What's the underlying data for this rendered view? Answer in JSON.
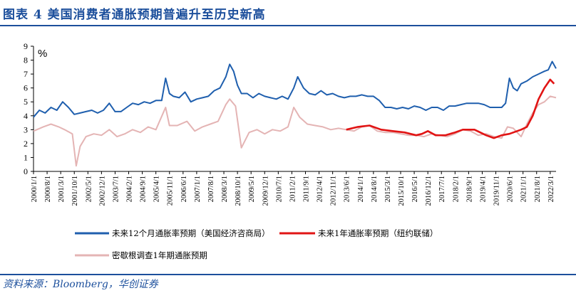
{
  "figure": {
    "title": "图表 4   美国消费者通胀预期普遍升至历史新高",
    "source": "资料来源：Bloomberg，华创证券"
  },
  "chart_data": {
    "type": "line",
    "unit_label": "%",
    "ylim": [
      0,
      9
    ],
    "yticks": [
      0,
      1,
      2,
      3,
      4,
      5,
      6,
      7,
      8,
      9
    ],
    "xlim": [
      "2000-01",
      "2022-06"
    ],
    "xticks": [
      "2000/1/1",
      "2000/8/1",
      "2001/3/1",
      "2001/10/1",
      "2002/5/1",
      "2002/12/1",
      "2003/7/1",
      "2004/2/1",
      "2004/9/1",
      "2005/4/1",
      "2005/11/1",
      "2006/6/1",
      "2007/1/1",
      "2007/8/1",
      "2008/3/1",
      "2008/10/1",
      "2009/5/1",
      "2009/12/1",
      "2010/7/1",
      "2011/2/1",
      "2011/9/1",
      "2012/4/1",
      "2012/11/1",
      "2013/6/1",
      "2014/1/1",
      "2014/8/1",
      "2015/3/1",
      "2015/10/1",
      "2016/5/1",
      "2016/12/1",
      "2017/7/1",
      "2018/2/1",
      "2018/9/1",
      "2019/4/1",
      "2019/11/1",
      "2020/6/1",
      "2021/1/1",
      "2021/8/1",
      "2022/3/1"
    ],
    "grid": false,
    "legend": "bottom",
    "series": [
      {
        "name": "未来12个月通胀率预期（美国经济咨商局）",
        "color": "#1f5fae",
        "points": [
          [
            "2000-01",
            3.9
          ],
          [
            "2000-04",
            4.4
          ],
          [
            "2000-07",
            4.2
          ],
          [
            "2000-10",
            4.6
          ],
          [
            "2001-01",
            4.4
          ],
          [
            "2001-04",
            5.0
          ],
          [
            "2001-07",
            4.6
          ],
          [
            "2001-10",
            4.1
          ],
          [
            "2002-01",
            4.2
          ],
          [
            "2002-04",
            4.3
          ],
          [
            "2002-07",
            4.4
          ],
          [
            "2002-10",
            4.2
          ],
          [
            "2003-01",
            4.4
          ],
          [
            "2003-04",
            4.9
          ],
          [
            "2003-07",
            4.3
          ],
          [
            "2003-10",
            4.3
          ],
          [
            "2004-01",
            4.6
          ],
          [
            "2004-04",
            4.9
          ],
          [
            "2004-07",
            4.8
          ],
          [
            "2004-10",
            5.0
          ],
          [
            "2005-01",
            4.9
          ],
          [
            "2005-04",
            5.1
          ],
          [
            "2005-07",
            5.1
          ],
          [
            "2005-09",
            6.7
          ],
          [
            "2005-11",
            5.6
          ],
          [
            "2006-01",
            5.4
          ],
          [
            "2006-04",
            5.3
          ],
          [
            "2006-07",
            5.7
          ],
          [
            "2006-10",
            5.0
          ],
          [
            "2007-01",
            5.2
          ],
          [
            "2007-04",
            5.3
          ],
          [
            "2007-07",
            5.4
          ],
          [
            "2007-10",
            5.8
          ],
          [
            "2008-01",
            6.0
          ],
          [
            "2008-04",
            6.8
          ],
          [
            "2008-06",
            7.7
          ],
          [
            "2008-08",
            7.2
          ],
          [
            "2008-10",
            6.2
          ],
          [
            "2008-12",
            5.6
          ],
          [
            "2009-03",
            5.6
          ],
          [
            "2009-06",
            5.3
          ],
          [
            "2009-09",
            5.6
          ],
          [
            "2009-12",
            5.4
          ],
          [
            "2010-03",
            5.3
          ],
          [
            "2010-06",
            5.2
          ],
          [
            "2010-09",
            5.4
          ],
          [
            "2010-12",
            5.2
          ],
          [
            "2011-03",
            6.0
          ],
          [
            "2011-05",
            6.8
          ],
          [
            "2011-08",
            6.0
          ],
          [
            "2011-11",
            5.6
          ],
          [
            "2012-02",
            5.5
          ],
          [
            "2012-05",
            5.8
          ],
          [
            "2012-08",
            5.5
          ],
          [
            "2012-11",
            5.6
          ],
          [
            "2013-02",
            5.4
          ],
          [
            "2013-05",
            5.3
          ],
          [
            "2013-08",
            5.4
          ],
          [
            "2013-11",
            5.4
          ],
          [
            "2014-02",
            5.5
          ],
          [
            "2014-05",
            5.4
          ],
          [
            "2014-08",
            5.4
          ],
          [
            "2014-11",
            5.1
          ],
          [
            "2015-02",
            4.6
          ],
          [
            "2015-05",
            4.6
          ],
          [
            "2015-08",
            4.5
          ],
          [
            "2015-11",
            4.6
          ],
          [
            "2016-02",
            4.5
          ],
          [
            "2016-05",
            4.7
          ],
          [
            "2016-08",
            4.6
          ],
          [
            "2016-11",
            4.4
          ],
          [
            "2017-02",
            4.6
          ],
          [
            "2017-05",
            4.6
          ],
          [
            "2017-08",
            4.4
          ],
          [
            "2017-11",
            4.7
          ],
          [
            "2018-02",
            4.7
          ],
          [
            "2018-05",
            4.8
          ],
          [
            "2018-08",
            4.9
          ],
          [
            "2018-11",
            4.9
          ],
          [
            "2019-02",
            4.9
          ],
          [
            "2019-05",
            4.8
          ],
          [
            "2019-08",
            4.6
          ],
          [
            "2019-11",
            4.6
          ],
          [
            "2020-02",
            4.6
          ],
          [
            "2020-04",
            4.9
          ],
          [
            "2020-06",
            6.7
          ],
          [
            "2020-08",
            6.0
          ],
          [
            "2020-10",
            5.8
          ],
          [
            "2020-12",
            6.3
          ],
          [
            "2021-03",
            6.5
          ],
          [
            "2021-06",
            6.8
          ],
          [
            "2021-09",
            7.0
          ],
          [
            "2021-12",
            7.2
          ],
          [
            "2022-02",
            7.3
          ],
          [
            "2022-04",
            7.9
          ],
          [
            "2022-06",
            7.4
          ]
        ]
      },
      {
        "name": "未来1年通胀率预期（纽约联储）",
        "color": "#e11414",
        "points": [
          [
            "2013-06",
            3.0
          ],
          [
            "2013-12",
            3.2
          ],
          [
            "2014-06",
            3.3
          ],
          [
            "2014-12",
            3.0
          ],
          [
            "2015-06",
            2.9
          ],
          [
            "2015-12",
            2.8
          ],
          [
            "2016-06",
            2.6
          ],
          [
            "2016-09",
            2.7
          ],
          [
            "2016-12",
            2.9
          ],
          [
            "2017-04",
            2.6
          ],
          [
            "2017-09",
            2.6
          ],
          [
            "2018-02",
            2.8
          ],
          [
            "2018-06",
            3.0
          ],
          [
            "2018-12",
            3.0
          ],
          [
            "2019-06",
            2.6
          ],
          [
            "2019-10",
            2.4
          ],
          [
            "2020-02",
            2.6
          ],
          [
            "2020-06",
            2.7
          ],
          [
            "2020-12",
            3.0
          ],
          [
            "2021-03",
            3.2
          ],
          [
            "2021-06",
            4.0
          ],
          [
            "2021-09",
            5.2
          ],
          [
            "2021-12",
            6.0
          ],
          [
            "2022-03",
            6.6
          ],
          [
            "2022-05",
            6.3
          ]
        ]
      },
      {
        "name": "密歇根调查1年期通胀预期",
        "color": "#e4b4b4",
        "points": [
          [
            "2000-01",
            2.9
          ],
          [
            "2000-06",
            3.2
          ],
          [
            "2000-10",
            3.4
          ],
          [
            "2001-02",
            3.2
          ],
          [
            "2001-05",
            3.0
          ],
          [
            "2001-09",
            2.7
          ],
          [
            "2001-11",
            0.4
          ],
          [
            "2002-01",
            1.8
          ],
          [
            "2002-04",
            2.5
          ],
          [
            "2002-08",
            2.7
          ],
          [
            "2002-12",
            2.6
          ],
          [
            "2003-04",
            3.0
          ],
          [
            "2003-08",
            2.5
          ],
          [
            "2003-12",
            2.7
          ],
          [
            "2004-04",
            3.0
          ],
          [
            "2004-08",
            2.8
          ],
          [
            "2004-12",
            3.2
          ],
          [
            "2005-04",
            3.0
          ],
          [
            "2005-09",
            4.6
          ],
          [
            "2005-11",
            3.3
          ],
          [
            "2006-03",
            3.3
          ],
          [
            "2006-08",
            3.6
          ],
          [
            "2006-12",
            2.9
          ],
          [
            "2007-04",
            3.2
          ],
          [
            "2007-08",
            3.4
          ],
          [
            "2007-12",
            3.6
          ],
          [
            "2008-04",
            4.8
          ],
          [
            "2008-06",
            5.2
          ],
          [
            "2008-09",
            4.7
          ],
          [
            "2008-12",
            1.7
          ],
          [
            "2009-04",
            2.8
          ],
          [
            "2009-08",
            3.0
          ],
          [
            "2009-12",
            2.7
          ],
          [
            "2010-04",
            3.0
          ],
          [
            "2010-08",
            2.9
          ],
          [
            "2010-12",
            3.2
          ],
          [
            "2011-03",
            4.6
          ],
          [
            "2011-06",
            3.9
          ],
          [
            "2011-10",
            3.4
          ],
          [
            "2012-02",
            3.3
          ],
          [
            "2012-06",
            3.2
          ],
          [
            "2012-10",
            3.0
          ],
          [
            "2013-02",
            3.1
          ],
          [
            "2013-06",
            3.0
          ],
          [
            "2013-10",
            2.9
          ],
          [
            "2014-02",
            3.2
          ],
          [
            "2014-06",
            3.3
          ],
          [
            "2014-10",
            2.9
          ],
          [
            "2015-02",
            2.8
          ],
          [
            "2015-06",
            2.8
          ],
          [
            "2015-10",
            2.7
          ],
          [
            "2016-02",
            2.6
          ],
          [
            "2016-06",
            2.6
          ],
          [
            "2016-10",
            2.5
          ],
          [
            "2017-02",
            2.7
          ],
          [
            "2017-06",
            2.6
          ],
          [
            "2017-10",
            2.5
          ],
          [
            "2018-02",
            2.7
          ],
          [
            "2018-06",
            3.0
          ],
          [
            "2018-10",
            2.9
          ],
          [
            "2019-02",
            2.6
          ],
          [
            "2019-06",
            2.7
          ],
          [
            "2019-10",
            2.5
          ],
          [
            "2020-02",
            2.4
          ],
          [
            "2020-05",
            3.2
          ],
          [
            "2020-08",
            3.1
          ],
          [
            "2020-12",
            2.5
          ],
          [
            "2021-03",
            3.4
          ],
          [
            "2021-06",
            4.2
          ],
          [
            "2021-09",
            4.8
          ],
          [
            "2021-12",
            5.0
          ],
          [
            "2022-03",
            5.4
          ],
          [
            "2022-06",
            5.3
          ]
        ]
      }
    ]
  }
}
